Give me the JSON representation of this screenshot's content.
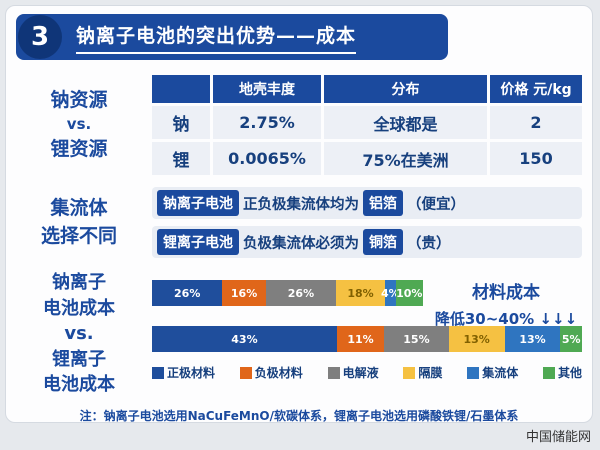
{
  "meta": {
    "accent_color": "#1b4a9e",
    "background_color": "#e6e9ed"
  },
  "header": {
    "badge": "3",
    "title": "钠离子电池的突出优势——成本"
  },
  "resource_section": {
    "label_lines": [
      "钠资源",
      "vs.",
      "锂资源"
    ],
    "table": {
      "col_headers": [
        "地壳丰度",
        "分布",
        "价格 元/kg"
      ],
      "rows": [
        {
          "name": "钠",
          "cells": [
            "2.75%",
            "全球都是",
            "2"
          ]
        },
        {
          "name": "锂",
          "cells": [
            "0.0065%",
            "75%在美洲",
            "150"
          ]
        }
      ]
    }
  },
  "collector_section": {
    "label_lines": [
      "集流体",
      "选择不同"
    ],
    "rows": [
      {
        "badge": "钠离子电池",
        "pre": "正负极集流体均为",
        "highlight": "铝箔",
        "post": "（便宜）"
      },
      {
        "badge": "锂离子电池",
        "pre": "负极集流体必须为",
        "highlight": "铜箔",
        "post": "（贵）"
      }
    ]
  },
  "cost_section": {
    "label_lines": [
      "钠离子",
      "电池成本",
      "vs.",
      "锂离子",
      "电池成本"
    ],
    "annotation_lines": [
      "材料成本",
      "降低30~40% ↓↓↓"
    ]
  },
  "chart_data": {
    "type": "bar",
    "subtype": "stacked-horizontal",
    "unit": "%",
    "categories": [
      "正极材料",
      "负极材料",
      "电解液",
      "隔膜",
      "集流体",
      "其他"
    ],
    "colors": [
      "#1f4e9c",
      "#e0661a",
      "#7f7f7f",
      "#f5c142",
      "#2f75c0",
      "#4fa953"
    ],
    "series": [
      {
        "name": "钠离子电池成本",
        "values": [
          26,
          16,
          26,
          18,
          4,
          10
        ],
        "bar_width_pct": 63
      },
      {
        "name": "锂离子电池成本",
        "values": [
          43,
          11,
          15,
          13,
          13,
          5
        ],
        "bar_width_pct": 100
      }
    ],
    "annotation": "材料成本降低30~40%",
    "legend_position": "bottom"
  },
  "note": "注：钠离子电池选用NaCuFeMnO/软碳体系，锂离子电池选用磷酸铁锂/石墨体系",
  "watermark": "中国储能网"
}
